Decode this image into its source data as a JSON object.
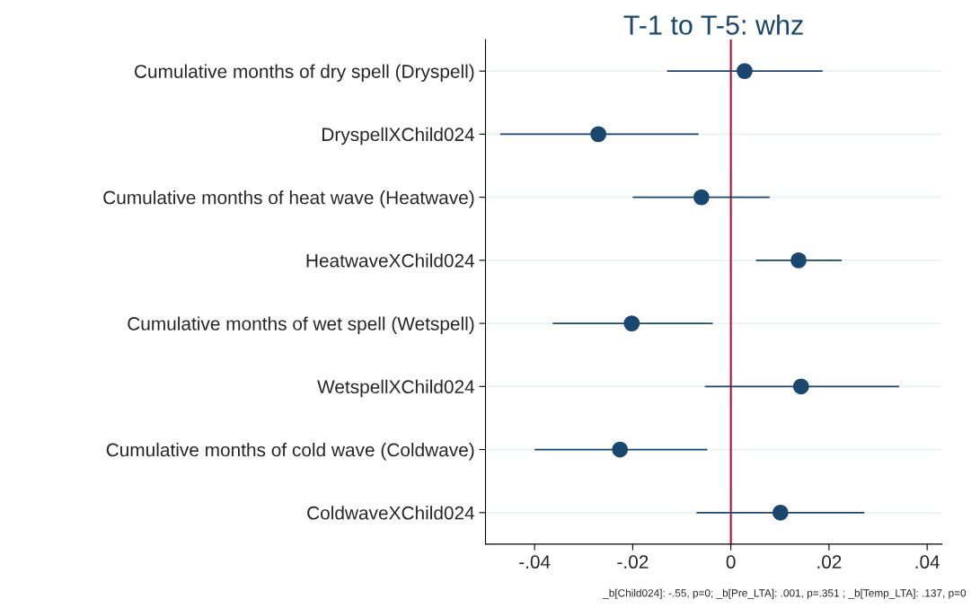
{
  "chart_data": {
    "type": "scatter",
    "orientation": "horizontal",
    "title": "T-1 to T-5: whz",
    "categories": [
      "Cumulative months of dry spell (Dryspell)",
      "DryspellXChild024",
      "Cumulative months of heat wave (Heatwave)",
      "HeatwaveXChild024",
      "Cumulative months of wet spell (Wetspell)",
      "WetspellXChild024",
      "Cumulative months of cold wave (Coldwave)",
      "ColdwaveXChild024"
    ],
    "series": [
      {
        "color": "#1a476f",
        "values": [
          0.0028,
          -0.027,
          -0.006,
          0.0138,
          -0.0202,
          0.0143,
          -0.0226,
          0.0101
        ],
        "errors": [
          [
            -0.013,
            0.0187
          ],
          [
            -0.047,
            -0.0066
          ],
          [
            -0.02,
            0.0079
          ],
          [
            0.0051,
            0.0226
          ],
          [
            -0.0363,
            -0.0037
          ],
          [
            -0.0053,
            0.0343
          ],
          [
            -0.04,
            -0.0048
          ],
          [
            -0.007,
            0.0272
          ]
        ]
      }
    ],
    "xlim": [
      -0.05,
      0.043
    ],
    "xticks": [
      {
        "value": -0.04,
        "label": "-.04"
      },
      {
        "value": -0.02,
        "label": "-.02"
      },
      0,
      {
        "value": 0.02,
        "label": ".02"
      },
      {
        "value": 0.04,
        "label": ".04"
      }
    ],
    "ref_lines": [
      {
        "axis": "x",
        "value": 0,
        "color": "#c10534"
      }
    ],
    "grid": "y",
    "marker": "circle",
    "legend": false,
    "annotations": [
      "_b[Child024]: -.55, p=0; _b[Pre_LTA]: .001, p=.351 ; _b[Temp_LTA]: .137, p=0"
    ]
  }
}
